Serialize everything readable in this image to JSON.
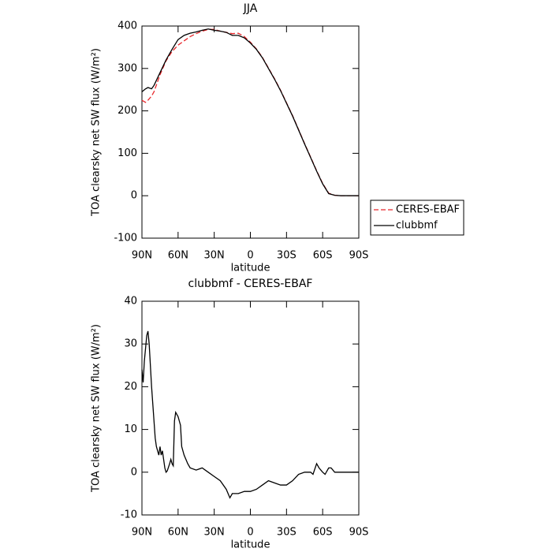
{
  "chart_data": [
    {
      "type": "line",
      "title": "JJA",
      "xlabel": "latitude",
      "ylabel": "TOA clearsky net SW flux (W/m²)",
      "xlim": [
        90,
        -90
      ],
      "ylim": [
        -100,
        400
      ],
      "xticks": [
        {
          "value": 90,
          "label": "90N"
        },
        {
          "value": 60,
          "label": "60N"
        },
        {
          "value": 30,
          "label": "30N"
        },
        0,
        {
          "value": -30,
          "label": "30S"
        },
        {
          "value": -60,
          "label": "60S"
        },
        {
          "value": -90,
          "label": "90S"
        }
      ],
      "yticks": [
        -100,
        0,
        100,
        200,
        300,
        400
      ],
      "legend": "right",
      "x": [
        90,
        87,
        85,
        82,
        80,
        75,
        70,
        65,
        60,
        55,
        50,
        45,
        40,
        35,
        30,
        25,
        20,
        15,
        10,
        5,
        0,
        -5,
        -10,
        -15,
        -20,
        -25,
        -30,
        -35,
        -40,
        -45,
        -50,
        -55,
        -60,
        -65,
        -70,
        -75,
        -80,
        -85,
        -90
      ],
      "series": [
        {
          "name": "CERES-EBAF",
          "color": "#e8262a",
          "linestyle": "dashed",
          "values": [
            225,
            220,
            225,
            235,
            245,
            285,
            318,
            340,
            355,
            365,
            375,
            382,
            388,
            392,
            392,
            388,
            385,
            382,
            383,
            375,
            362,
            346,
            326,
            301,
            276,
            249,
            219,
            189,
            156,
            123,
            91,
            59,
            29,
            6,
            1,
            0,
            0,
            0,
            0
          ]
        },
        {
          "name": "clubbmf",
          "color": "#000000",
          "linestyle": "solid",
          "values": [
            245,
            252,
            255,
            252,
            260,
            290,
            320,
            345,
            368,
            378,
            383,
            386,
            390,
            393,
            390,
            388,
            385,
            378,
            378,
            372,
            360,
            345,
            325,
            300,
            275,
            248,
            218,
            188,
            155,
            122,
            90,
            58,
            28,
            5,
            1,
            0,
            0,
            0,
            0
          ]
        }
      ]
    },
    {
      "type": "line",
      "title": "clubbmf  -  CERES-EBAF",
      "xlabel": "latitude",
      "ylabel": "TOA clearsky net SW flux (W/m²)",
      "xlim": [
        90,
        -90
      ],
      "ylim": [
        -10,
        40
      ],
      "xticks": [
        {
          "value": 90,
          "label": "90N"
        },
        {
          "value": 60,
          "label": "60N"
        },
        {
          "value": 30,
          "label": "30N"
        },
        0,
        {
          "value": -30,
          "label": "30S"
        },
        {
          "value": -60,
          "label": "60S"
        },
        {
          "value": -90,
          "label": "90S"
        }
      ],
      "yticks": [
        -10,
        0,
        10,
        20,
        30,
        40
      ],
      "x": [
        90,
        89,
        88,
        86,
        85,
        84,
        82,
        80,
        79,
        78,
        77,
        76,
        75,
        74,
        73,
        72,
        71,
        70,
        69,
        67,
        66,
        65,
        64,
        63,
        62,
        60,
        58,
        57,
        55,
        52,
        50,
        45,
        40,
        35,
        30,
        25,
        20,
        17,
        15,
        10,
        5,
        0,
        -5,
        -10,
        -15,
        -20,
        -25,
        -30,
        -35,
        -40,
        -45,
        -50,
        -52,
        -55,
        -57,
        -60,
        -62,
        -65,
        -67,
        -70,
        -90
      ],
      "series": [
        {
          "color": "#000000",
          "linestyle": "solid",
          "values": [
            24,
            21,
            26,
            32,
            33,
            30,
            20,
            12,
            8,
            6,
            5,
            4,
            6,
            4,
            5,
            3,
            1,
            0,
            0.3,
            2,
            3,
            2,
            1.5,
            12,
            14,
            13,
            11,
            6,
            4,
            2,
            1,
            0.5,
            1,
            0,
            -1,
            -2,
            -4,
            -6,
            -5,
            -5,
            -4.5,
            -4.5,
            -4,
            -3,
            -2,
            -2.5,
            -3,
            -3,
            -2,
            -0.5,
            0,
            0,
            -0.5,
            2,
            1,
            0,
            -0.5,
            1,
            1,
            0,
            0
          ]
        }
      ]
    }
  ]
}
